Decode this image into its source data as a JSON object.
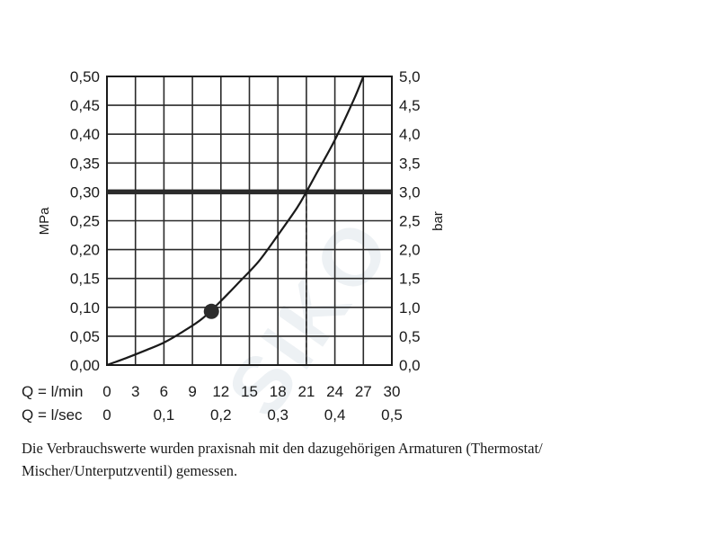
{
  "chart_data": {
    "type": "line",
    "y_left_label": "MPa",
    "y_right_label": "bar",
    "y_left_ticks": [
      "0,00",
      "0,05",
      "0,10",
      "0,15",
      "0,20",
      "0,25",
      "0,30",
      "0,35",
      "0,40",
      "0,45",
      "0,50"
    ],
    "y_right_ticks": [
      "0,0",
      "0,5",
      "1,0",
      "1,5",
      "2,0",
      "2,5",
      "3,0",
      "3,5",
      "4,0",
      "4,5",
      "5,0"
    ],
    "ylim": [
      0,
      0.5
    ],
    "xlim_lmin": [
      0,
      30
    ],
    "x_row1_label": "Q = l/min",
    "x_row1_ticks": [
      "0",
      "3",
      "6",
      "9",
      "12",
      "15",
      "18",
      "21",
      "24",
      "27",
      "30"
    ],
    "x_row2_label": "Q = l/sec",
    "x_row2_ticks": [
      "0",
      "0,1",
      "0,2",
      "0,3",
      "0,4",
      "0,5"
    ],
    "grid": true,
    "series": [
      {
        "x": [
          0,
          2,
          4,
          6,
          8,
          10,
          12,
          14,
          16,
          18,
          20,
          21,
          22,
          24,
          26,
          27
        ],
        "y": [
          0.0,
          0.012,
          0.025,
          0.039,
          0.058,
          0.08,
          0.111,
          0.145,
          0.18,
          0.225,
          0.272,
          0.3,
          0.33,
          0.39,
          0.46,
          0.5
        ]
      }
    ],
    "marker_point": {
      "x": 11,
      "y": 0.093
    },
    "reference_line_y": 0.3,
    "reference_drop_x": 21
  },
  "caption": "Die Verbrauchswerte wurden praxisnah mit den dazugehörigen Armaturen (Thermostat/ Mischer/Unterputzventil) gemessen.",
  "watermark_text": "SIKO"
}
